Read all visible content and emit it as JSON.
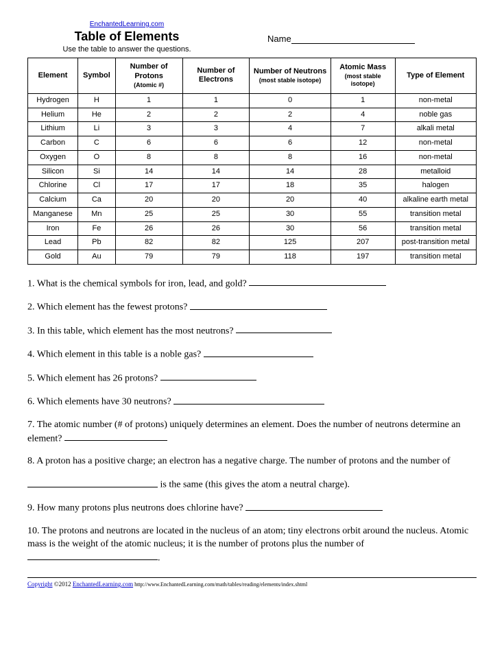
{
  "header": {
    "site_link": "EnchantedLearning.com",
    "title": "Table of Elements",
    "subtitle": "Use the table to answer the questions.",
    "name_label": "Name"
  },
  "table": {
    "columns": {
      "element": "Element",
      "symbol": "Symbol",
      "protons": "Number of Protons",
      "protons_sub": "(Atomic #)",
      "electrons": "Number of Electrons",
      "neutrons": "Number of Neutrons",
      "neutrons_sub": "(most stable isotope)",
      "mass": "Atomic Mass",
      "mass_sub": "(most stable isotope)",
      "type": "Type of Element"
    },
    "rows": [
      {
        "element": "Hydrogen",
        "symbol": "H",
        "protons": "1",
        "electrons": "1",
        "neutrons": "0",
        "mass": "1",
        "type": "non-metal"
      },
      {
        "element": "Helium",
        "symbol": "He",
        "protons": "2",
        "electrons": "2",
        "neutrons": "2",
        "mass": "4",
        "type": "noble gas"
      },
      {
        "element": "Lithium",
        "symbol": "Li",
        "protons": "3",
        "electrons": "3",
        "neutrons": "4",
        "mass": "7",
        "type": "alkali metal"
      },
      {
        "element": "Carbon",
        "symbol": "C",
        "protons": "6",
        "electrons": "6",
        "neutrons": "6",
        "mass": "12",
        "type": "non-metal"
      },
      {
        "element": "Oxygen",
        "symbol": "O",
        "protons": "8",
        "electrons": "8",
        "neutrons": "8",
        "mass": "16",
        "type": "non-metal"
      },
      {
        "element": "Silicon",
        "symbol": "Si",
        "protons": "14",
        "electrons": "14",
        "neutrons": "14",
        "mass": "28",
        "type": "metalloid"
      },
      {
        "element": "Chlorine",
        "symbol": "Cl",
        "protons": "17",
        "electrons": "17",
        "neutrons": "18",
        "mass": "35",
        "type": "halogen"
      },
      {
        "element": "Calcium",
        "symbol": "Ca",
        "protons": "20",
        "electrons": "20",
        "neutrons": "20",
        "mass": "40",
        "type": "alkaline earth metal"
      },
      {
        "element": "Manganese",
        "symbol": "Mn",
        "protons": "25",
        "electrons": "25",
        "neutrons": "30",
        "mass": "55",
        "type": "transition metal"
      },
      {
        "element": "Iron",
        "symbol": "Fe",
        "protons": "26",
        "electrons": "26",
        "neutrons": "30",
        "mass": "56",
        "type": "transition metal"
      },
      {
        "element": "Lead",
        "symbol": "Pb",
        "protons": "82",
        "electrons": "82",
        "neutrons": "125",
        "mass": "207",
        "type": "post-transition metal"
      },
      {
        "element": "Gold",
        "symbol": "Au",
        "protons": "79",
        "electrons": "79",
        "neutrons": "118",
        "mass": "197",
        "type": "transition metal"
      }
    ]
  },
  "questions": {
    "q1": "1. What is the chemical symbols for iron, lead, and gold?",
    "q2": "2. Which element has the fewest protons?",
    "q3": "3. In this table, which element has the most neutrons?",
    "q4": "4. Which element in this table is a noble gas?",
    "q5": "5. Which element has 26 protons?",
    "q6": "6. Which elements have 30 neutrons?",
    "q7": "7. The atomic number (# of protons) uniquely determines an element. Does the number of neutrons determine an element?",
    "q8a": "8. A proton has a positive charge; an electron has a negative charge. The number of protons and the number of",
    "q8b": " is the same (this gives the atom a neutral charge).",
    "q9": "9. How many protons plus neutrons does chlorine have?",
    "q10a": "10. The protons and neutrons are located in the nucleus of an atom; tiny electrons orbit around the nucleus. Atomic mass is the weight of the atomic nucleus; it is the number of protons plus the number of",
    "q10b": "."
  },
  "footer": {
    "copyright_link": "Copyright",
    "copyright_text": " ©2012 ",
    "site_link": "EnchantedLearning.com",
    "url": "     http://www.EnchantedLearning.com/math/tables/reading/elements/index.shtml"
  }
}
